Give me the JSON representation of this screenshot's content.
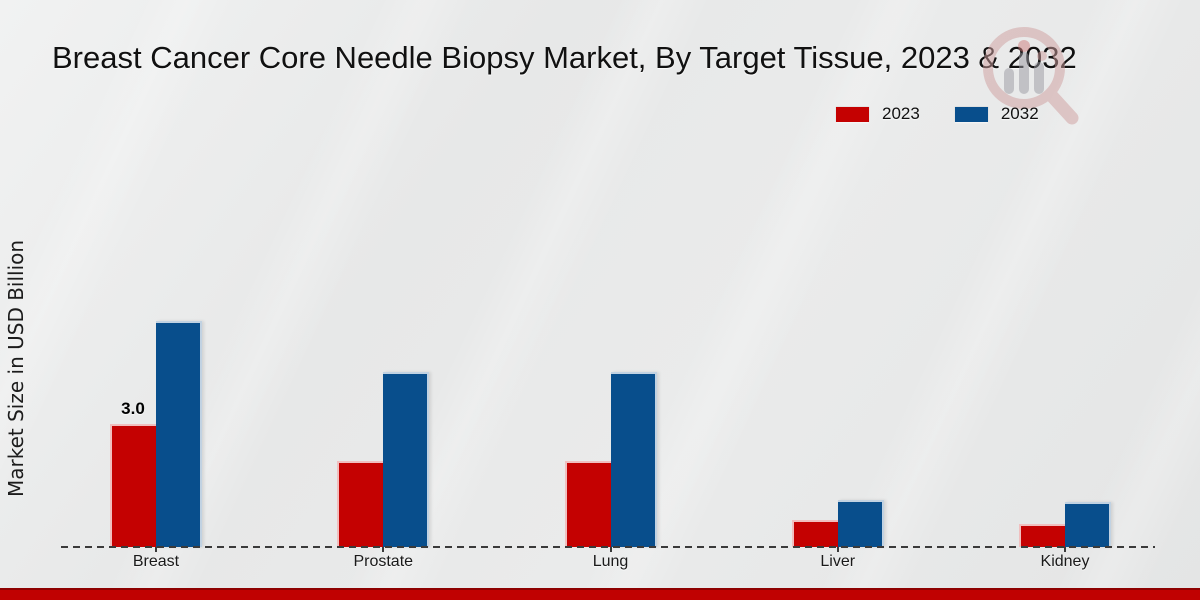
{
  "title": "Breast Cancer Core Needle Biopsy Market, By Target Tissue, 2023 & 2032",
  "ylabel": "Market Size in USD Billion",
  "colors": {
    "series_2023": "#c40101",
    "series_2032": "#084e8c",
    "footer_band": "#c00101",
    "footer_band_edge": "#8e0101",
    "background": "#e8e9e9",
    "text": "#1a1a1a",
    "axis": "#3a3a3a"
  },
  "watermark": {
    "name": "market-research-logo",
    "ring_color": "#c98f8f",
    "bar_color": "#9a9aa2"
  },
  "chart_data": {
    "type": "bar",
    "title": "Breast Cancer Core Needle Biopsy Market, By Target Tissue, 2023 & 2032",
    "xlabel": "",
    "ylabel": "Market Size in USD Billion",
    "categories": [
      "Breast",
      "Prostate",
      "Lung",
      "Liver",
      "Kidney"
    ],
    "series": [
      {
        "name": "2023",
        "color": "#c40101",
        "values": [
          3.0,
          2.1,
          2.1,
          0.65,
          0.55
        ]
      },
      {
        "name": "2032",
        "color": "#084e8c",
        "values": [
          5.5,
          4.25,
          4.25,
          1.15,
          1.1
        ]
      }
    ],
    "bar_labels": [
      [
        "3.0",
        "",
        "",
        "",
        ""
      ],
      [
        "",
        "",
        "",
        "",
        ""
      ]
    ],
    "ylim": [
      0,
      6
    ],
    "grid": false,
    "y_axis_ticks_visible": false,
    "zero_line_style": "dashed",
    "legend_position": "top-right"
  }
}
